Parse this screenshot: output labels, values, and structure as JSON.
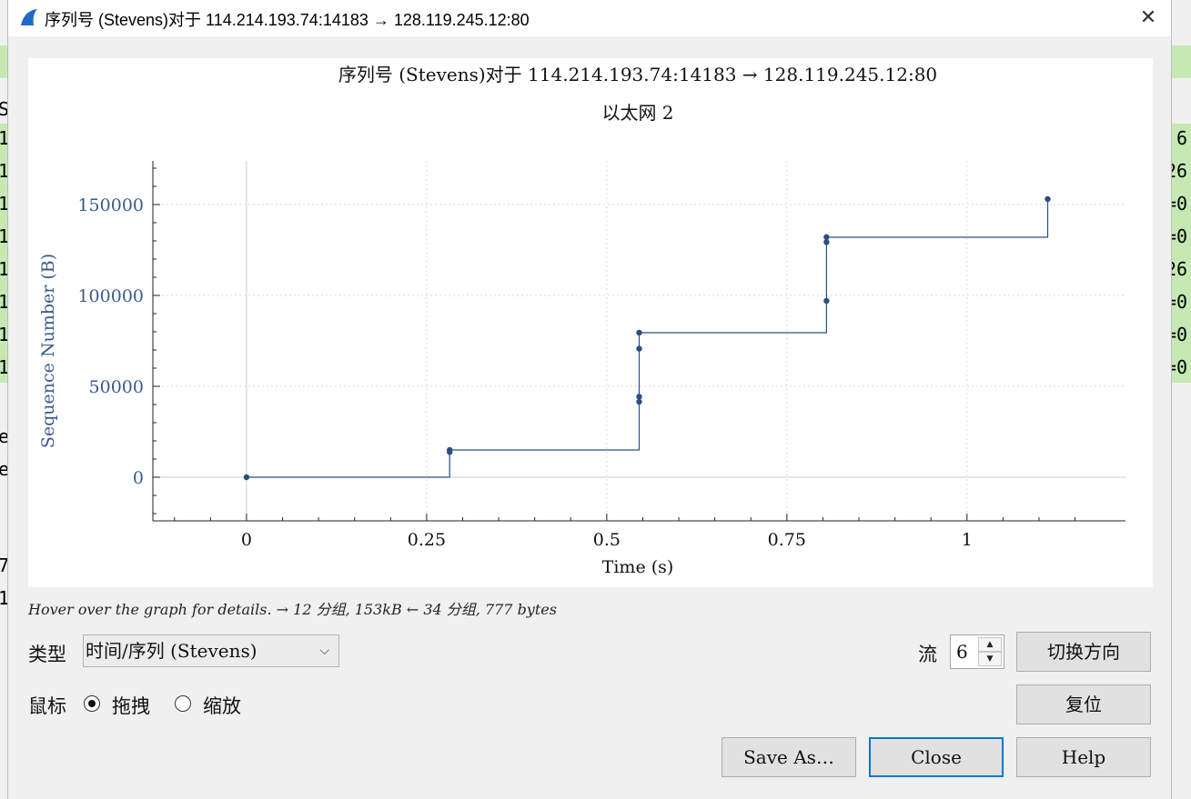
{
  "background_window": {
    "left_fragments": [
      "S",
      "1",
      "1",
      "1",
      "1",
      "1",
      "1",
      "1",
      "1",
      "e",
      "e",
      "7",
      "1"
    ],
    "right_fragments": [
      "6",
      "26",
      "=0",
      "=0",
      "26",
      "=0",
      "=0",
      "=0"
    ]
  },
  "dialog": {
    "title": "序列号 (Stevens)对于 114.214.193.74:14183 → 128.119.245.12:80",
    "close_glyph": "✕"
  },
  "plot": {
    "title": "序列号 (Stevens)对于 114.214.193.74:14183 → 128.119.245.12:80",
    "subtitle": "以太网 2"
  },
  "chart_data": {
    "type": "line",
    "title": "序列号 (Stevens)对于 114.214.193.74:14183 → 128.119.245.12:80",
    "subtitle": "以太网 2",
    "xlabel": "Time (s)",
    "ylabel": "Sequence Number (B)",
    "xlim": [
      -0.13,
      1.22
    ],
    "ylim": [
      -24000,
      174000
    ],
    "x_ticks": [
      0,
      0.25,
      0.5,
      0.75,
      1
    ],
    "x_tick_labels": [
      "0",
      "0.25",
      "0.5",
      "0.75",
      "1"
    ],
    "y_ticks": [
      0,
      50000,
      100000,
      150000
    ],
    "y_tick_labels": [
      "0",
      "50000",
      "100000",
      "150000"
    ],
    "grid": true,
    "series": [
      {
        "color": "#2b4f7e",
        "step_line": [
          [
            0,
            0
          ],
          [
            0.282,
            0
          ],
          [
            0.282,
            15000
          ],
          [
            0.545,
            15000
          ],
          [
            0.545,
            79500
          ],
          [
            0.805,
            79500
          ],
          [
            0.805,
            132000
          ],
          [
            1.112,
            132000
          ],
          [
            1.112,
            153000
          ]
        ],
        "points": [
          {
            "x": 0.0,
            "y": 0
          },
          {
            "x": 0.282,
            "y": 13800
          },
          {
            "x": 0.282,
            "y": 15000
          },
          {
            "x": 0.545,
            "y": 41500
          },
          {
            "x": 0.545,
            "y": 44300
          },
          {
            "x": 0.545,
            "y": 70700
          },
          {
            "x": 0.545,
            "y": 79500
          },
          {
            "x": 0.805,
            "y": 97000
          },
          {
            "x": 0.805,
            "y": 129300
          },
          {
            "x": 0.805,
            "y": 132100
          },
          {
            "x": 1.112,
            "y": 153000
          }
        ]
      }
    ]
  },
  "hover_text": "Hover over the graph for details. → 12 分组, 153kB ← 34 分组, 777 bytes",
  "controls": {
    "type_label": "类型",
    "type_value": "时间/序列 (Stevens)",
    "stream_label": "流",
    "stream_value": "6",
    "mouse_label": "鼠标",
    "radio_drag": "拖拽",
    "radio_zoom": "缩放",
    "switch_direction": "切换方向",
    "reset": "复位",
    "save_as": "Save As…",
    "close": "Close",
    "help": "Help"
  },
  "colors": {
    "series": "#2b4f7e",
    "axis_label": "#3a5a8a",
    "accent": "#0078d7",
    "background_rows": "#c6e9b3"
  }
}
